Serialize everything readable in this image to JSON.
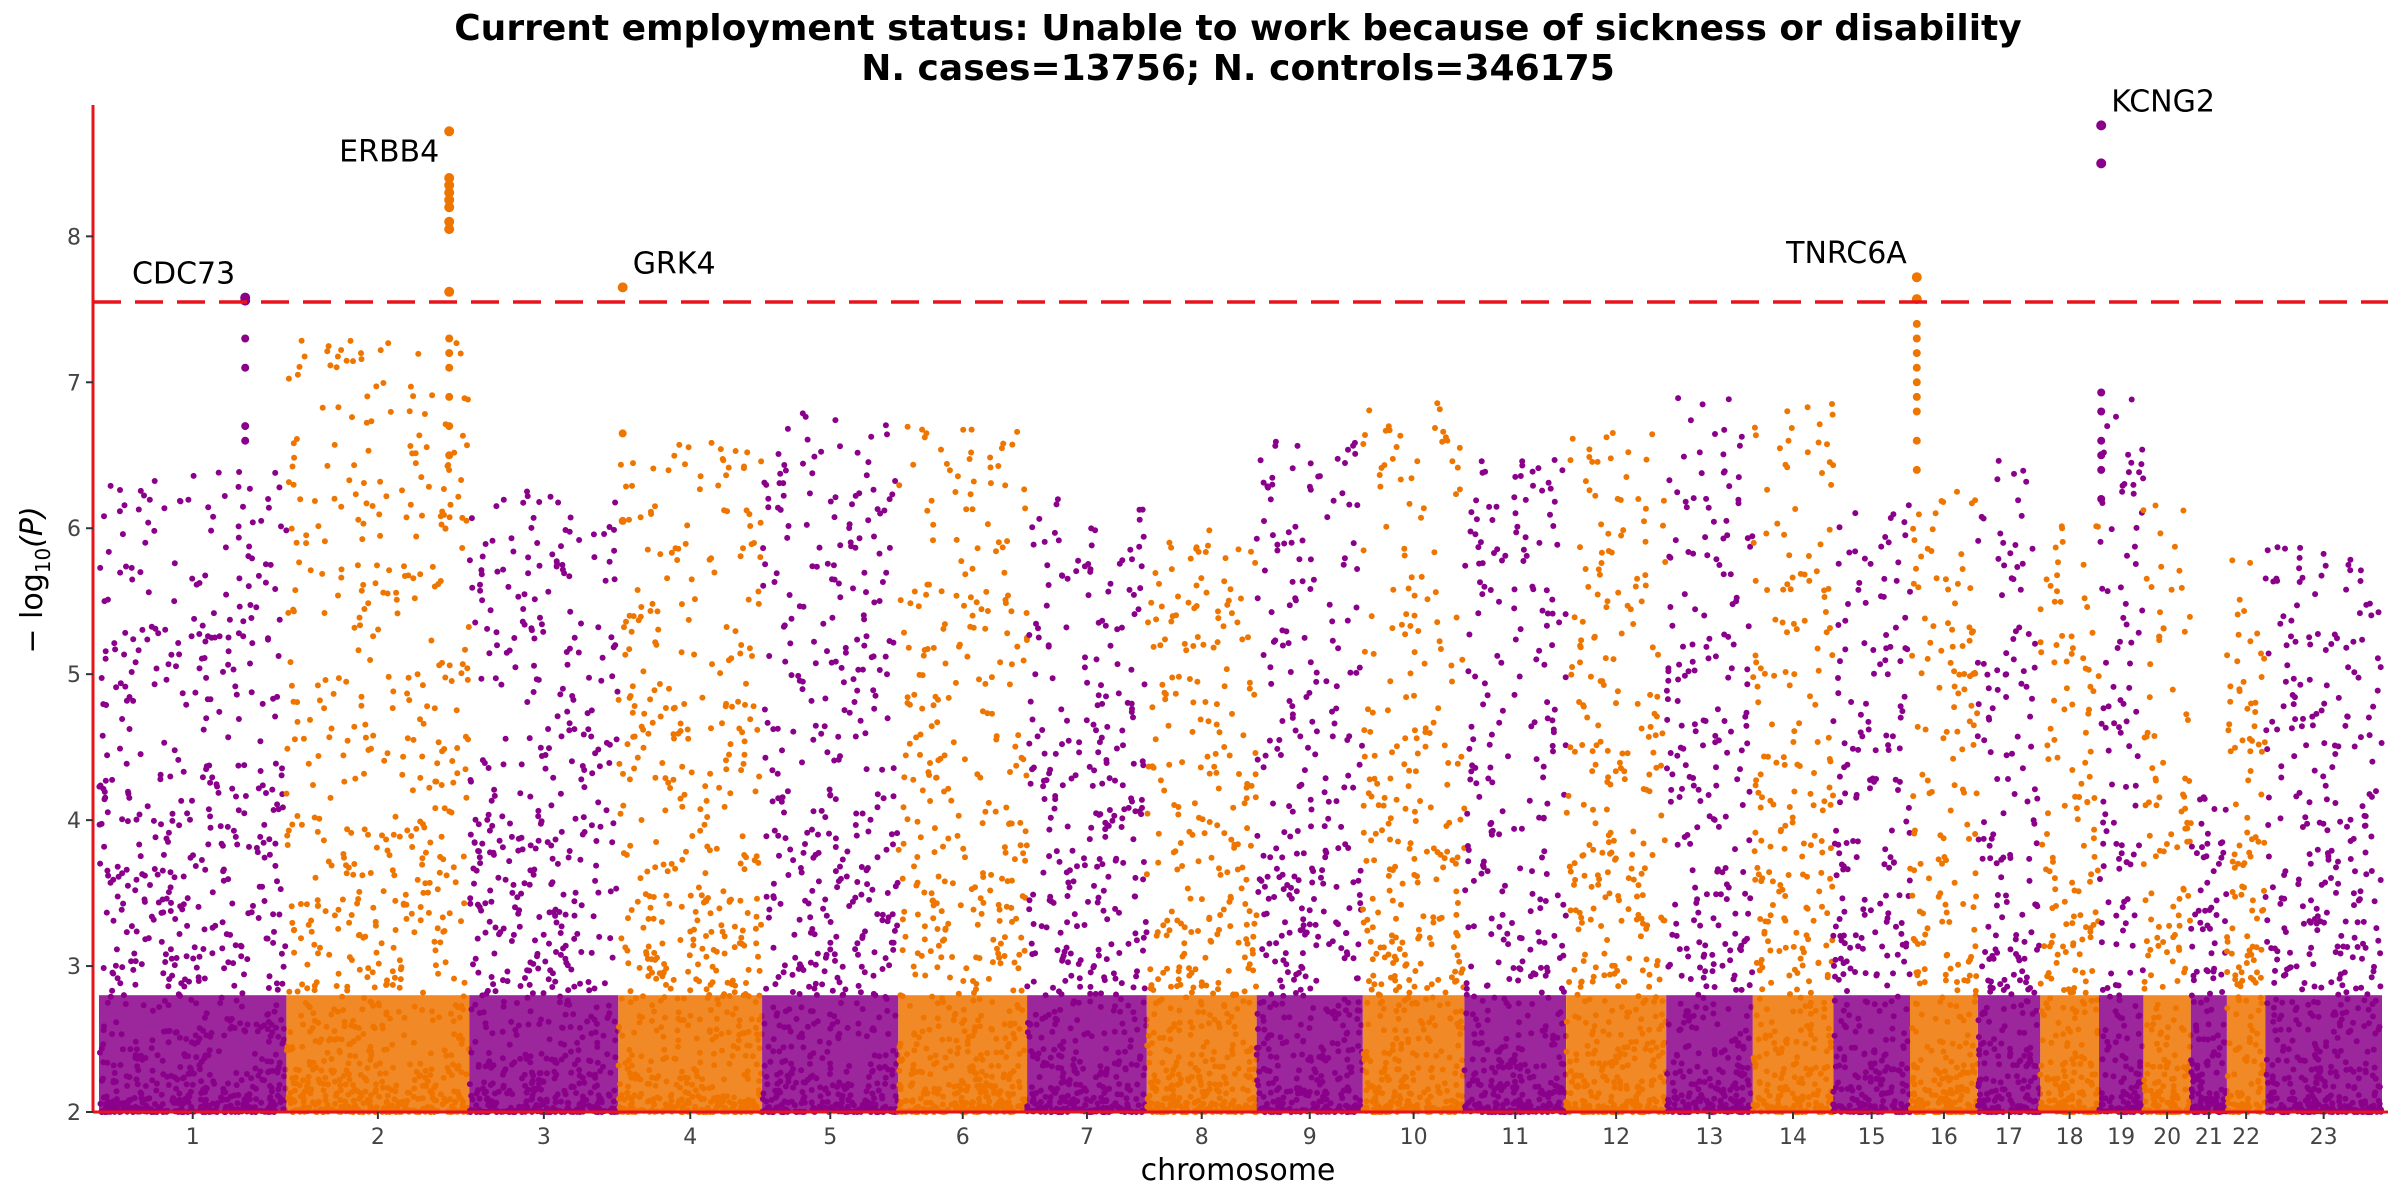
{
  "chart_data": {
    "type": "scatter",
    "title_line1": "Current employment status: Unable to work because of sickness or disability",
    "title_line2": "N. cases=13756; N. controls=346175",
    "xlabel": "chromosome",
    "ylabel_prefix": "− log",
    "ylabel_sub": "10",
    "ylabel_suffix": "(P)",
    "ylim": [
      2,
      8.9
    ],
    "yticks": [
      2,
      3,
      4,
      5,
      6,
      7,
      8
    ],
    "significance_line": 7.55,
    "colors": {
      "odd": "#8B008B",
      "even": "#EE7600",
      "threshold": "#E8141B",
      "axis": "#E8141B"
    },
    "chromosomes": [
      {
        "label": "1",
        "length": 249,
        "peak": 6.4
      },
      {
        "label": "2",
        "length": 243,
        "peak": 7.3
      },
      {
        "label": "3",
        "length": 198,
        "peak": 6.3
      },
      {
        "label": "4",
        "length": 191,
        "peak": 6.6
      },
      {
        "label": "5",
        "length": 181,
        "peak": 6.8
      },
      {
        "label": "6",
        "length": 171,
        "peak": 6.7
      },
      {
        "label": "7",
        "length": 159,
        "peak": 6.2
      },
      {
        "label": "8",
        "length": 146,
        "peak": 6.0
      },
      {
        "label": "9",
        "length": 141,
        "peak": 6.6
      },
      {
        "label": "10",
        "length": 135,
        "peak": 6.9
      },
      {
        "label": "11",
        "length": 135,
        "peak": 6.5
      },
      {
        "label": "12",
        "length": 133,
        "peak": 6.7
      },
      {
        "label": "13",
        "length": 115,
        "peak": 6.9
      },
      {
        "label": "14",
        "length": 107,
        "peak": 6.9
      },
      {
        "label": "15",
        "length": 102,
        "peak": 6.2
      },
      {
        "label": "16",
        "length": 90,
        "peak": 6.3
      },
      {
        "label": "17",
        "length": 83,
        "peak": 6.5
      },
      {
        "label": "18",
        "length": 78,
        "peak": 6.1
      },
      {
        "label": "19",
        "length": 59,
        "peak": 6.9
      },
      {
        "label": "20",
        "length": 63,
        "peak": 6.2
      },
      {
        "label": "21",
        "length": 48,
        "peak": 4.2
      },
      {
        "label": "22",
        "length": 51,
        "peak": 5.8
      },
      {
        "label": "23",
        "length": 155,
        "peak": 5.9
      }
    ],
    "annotations": [
      {
        "gene": "CDC73",
        "chrom": "1",
        "pos": 0.78,
        "y": 7.58
      },
      {
        "gene": "ERBB4",
        "chrom": "2",
        "pos": 0.89,
        "y": 8.72
      },
      {
        "gene": "GRK4",
        "chrom": "4",
        "pos": 0.03,
        "y": 7.65
      },
      {
        "gene": "TNRC6A",
        "chrom": "16",
        "pos": 0.1,
        "y": 7.72
      },
      {
        "gene": "KCNG2",
        "chrom": "19",
        "pos": 0.05,
        "y": 8.76
      }
    ],
    "top_hits": [
      {
        "chrom": "1",
        "pos": 0.78,
        "values": [
          7.58,
          7.56,
          7.3,
          7.1,
          6.7,
          6.6
        ]
      },
      {
        "chrom": "2",
        "pos": 0.89,
        "values": [
          8.72,
          8.4,
          8.35,
          8.3,
          8.25,
          8.2,
          8.1,
          8.05,
          7.62,
          7.3,
          7.2,
          7.1,
          6.9,
          6.7,
          6.5
        ]
      },
      {
        "chrom": "4",
        "pos": 0.03,
        "values": [
          7.65,
          6.65,
          6.05
        ]
      },
      {
        "chrom": "16",
        "pos": 0.1,
        "values": [
          7.72,
          7.57,
          7.4,
          7.3,
          7.2,
          7.1,
          7.0,
          6.9,
          6.8,
          6.6,
          6.4
        ]
      },
      {
        "chrom": "19",
        "pos": 0.05,
        "values": [
          8.76,
          8.5,
          6.93,
          6.8,
          6.6,
          6.5,
          6.4,
          6.2
        ]
      }
    ]
  }
}
